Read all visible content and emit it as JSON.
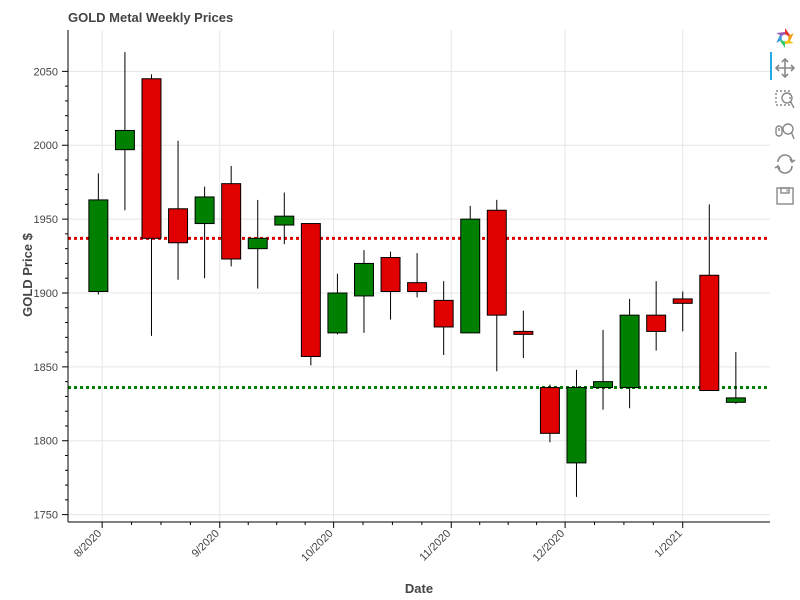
{
  "chart_data": {
    "type": "candlestick",
    "title": "GOLD Metal Weekly Prices",
    "xlabel": "Date",
    "ylabel": "GOLD Price $",
    "x_tick_labels": [
      "8/2020",
      "9/2020",
      "10/2020",
      "11/2020",
      "12/2020",
      "1/2021"
    ],
    "x_ticks": [
      "2020-08-01",
      "2020-09-01",
      "2020-10-01",
      "2020-11-01",
      "2020-12-01",
      "2021-01-01"
    ],
    "xlim": [
      "2020-07-23",
      "2021-01-24"
    ],
    "ylim": [
      1745,
      2078
    ],
    "y_ticks": [
      1750,
      1800,
      1850,
      1900,
      1950,
      2000,
      2050
    ],
    "grid": true,
    "colors": {
      "up": "#008000",
      "down": "#e00000",
      "wick": "#000000",
      "high_line": "#e00000",
      "low_line": "#008000"
    },
    "reference_lines": [
      {
        "value": 1937,
        "color": "#e00000",
        "style": "dotted"
      },
      {
        "value": 1836,
        "color": "#008000",
        "style": "dotted"
      }
    ],
    "candles": [
      {
        "date": "2020-07-31",
        "open": 1901,
        "high": 1981,
        "low": 1899,
        "close": 1963
      },
      {
        "date": "2020-08-07",
        "open": 1997,
        "high": 2063,
        "low": 1956,
        "close": 2010
      },
      {
        "date": "2020-08-14",
        "open": 2045,
        "high": 2048,
        "low": 1871,
        "close": 1937
      },
      {
        "date": "2020-08-21",
        "open": 1957,
        "high": 2003,
        "low": 1909,
        "close": 1934
      },
      {
        "date": "2020-08-28",
        "open": 1947,
        "high": 1972,
        "low": 1910,
        "close": 1965
      },
      {
        "date": "2020-09-04",
        "open": 1974,
        "high": 1986,
        "low": 1918,
        "close": 1923
      },
      {
        "date": "2020-09-11",
        "open": 1930,
        "high": 1963,
        "low": 1903,
        "close": 1937
      },
      {
        "date": "2020-09-18",
        "open": 1946,
        "high": 1968,
        "low": 1933,
        "close": 1952
      },
      {
        "date": "2020-09-25",
        "open": 1947,
        "high": 1947,
        "low": 1851,
        "close": 1857
      },
      {
        "date": "2020-10-02",
        "open": 1873,
        "high": 1913,
        "low": 1872,
        "close": 1900
      },
      {
        "date": "2020-10-09",
        "open": 1898,
        "high": 1929,
        "low": 1873,
        "close": 1920
      },
      {
        "date": "2020-10-16",
        "open": 1924,
        "high": 1928,
        "low": 1882,
        "close": 1901
      },
      {
        "date": "2020-10-23",
        "open": 1907,
        "high": 1927,
        "low": 1897,
        "close": 1901
      },
      {
        "date": "2020-10-30",
        "open": 1895,
        "high": 1908,
        "low": 1858,
        "close": 1877
      },
      {
        "date": "2020-11-06",
        "open": 1873,
        "high": 1959,
        "low": 1873,
        "close": 1950
      },
      {
        "date": "2020-11-13",
        "open": 1956,
        "high": 1963,
        "low": 1847,
        "close": 1885
      },
      {
        "date": "2020-11-20",
        "open": 1874,
        "high": 1888,
        "low": 1856,
        "close": 1872
      },
      {
        "date": "2020-11-27",
        "open": 1836,
        "high": 1838,
        "low": 1799,
        "close": 1805
      },
      {
        "date": "2020-12-04",
        "open": 1785,
        "high": 1848,
        "low": 1762,
        "close": 1836
      },
      {
        "date": "2020-12-11",
        "open": 1836,
        "high": 1875,
        "low": 1821,
        "close": 1840
      },
      {
        "date": "2020-12-18",
        "open": 1836,
        "high": 1896,
        "low": 1822,
        "close": 1885
      },
      {
        "date": "2020-12-25",
        "open": 1885,
        "high": 1908,
        "low": 1861,
        "close": 1874
      },
      {
        "date": "2021-01-01",
        "open": 1896,
        "high": 1901,
        "low": 1874,
        "close": 1893
      },
      {
        "date": "2021-01-08",
        "open": 1912,
        "high": 1960,
        "low": 1834,
        "close": 1834
      },
      {
        "date": "2021-01-15",
        "open": 1826,
        "high": 1860,
        "low": 1825,
        "close": 1829
      }
    ]
  },
  "toolbar": {
    "tools": [
      {
        "icon": "bokeh-logo-icon"
      },
      {
        "icon": "pan-icon",
        "active": true
      },
      {
        "icon": "box-zoom-icon"
      },
      {
        "icon": "wheel-zoom-icon"
      },
      {
        "icon": "reset-icon"
      },
      {
        "icon": "save-icon"
      }
    ]
  }
}
